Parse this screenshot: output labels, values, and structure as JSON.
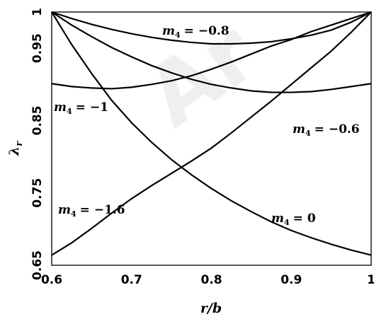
{
  "chart_data": {
    "type": "line",
    "title": "",
    "xlabel": "r/b",
    "ylabel": "λ_r",
    "xlim": [
      0.6,
      1.0
    ],
    "ylim": [
      0.65,
      1.0
    ],
    "x_ticks": [
      "0.6",
      "0.7",
      "0.8",
      "0.9",
      "1"
    ],
    "y_ticks": [
      "0.65",
      "0.75",
      "0.85",
      "0.95",
      "1"
    ],
    "grid": false,
    "watermark_text": "Ar",
    "x": [
      0.6,
      0.625,
      0.65,
      0.675,
      0.7,
      0.725,
      0.75,
      0.775,
      0.8,
      0.825,
      0.85,
      0.875,
      0.9,
      0.925,
      0.95,
      0.975,
      1.0
    ],
    "series": [
      {
        "label": "m4 = 0",
        "values": [
          1.0,
          0.955,
          0.915,
          0.878,
          0.847,
          0.82,
          0.796,
          0.775,
          0.756,
          0.739,
          0.724,
          0.71,
          0.698,
          0.688,
          0.679,
          0.671,
          0.664
        ]
      },
      {
        "label": "m4 = −0.6",
        "values": [
          1.0,
          0.982,
          0.966,
          0.951,
          0.938,
          0.926,
          0.916,
          0.907,
          0.9,
          0.895,
          0.891,
          0.889,
          0.889,
          0.89,
          0.893,
          0.897,
          0.901
        ]
      },
      {
        "label": "m4 = −0.8",
        "values": [
          1.0,
          0.991,
          0.983,
          0.976,
          0.97,
          0.965,
          0.961,
          0.958,
          0.956,
          0.956,
          0.957,
          0.959,
          0.963,
          0.968,
          0.975,
          0.986,
          1.0
        ]
      },
      {
        "label": "m4 = −1",
        "values": [
          0.901,
          0.897,
          0.895,
          0.894,
          0.896,
          0.9,
          0.905,
          0.912,
          0.921,
          0.931,
          0.942,
          0.953,
          0.962,
          0.973,
          0.982,
          0.991,
          1.0
        ]
      },
      {
        "label": "m4 = −1.6",
        "values": [
          0.664,
          0.681,
          0.701,
          0.722,
          0.742,
          0.76,
          0.777,
          0.794,
          0.812,
          0.833,
          0.855,
          0.877,
          0.9,
          0.923,
          0.946,
          0.972,
          1.0
        ]
      }
    ],
    "annotations": [
      {
        "prefix": "m",
        "sub": "4",
        "value": "= −0.8"
      },
      {
        "prefix": "m",
        "sub": "4",
        "value": "= −1"
      },
      {
        "prefix": "m",
        "sub": "4",
        "value": "= −0.6"
      },
      {
        "prefix": "m",
        "sub": "4",
        "value": "= −1.6"
      },
      {
        "prefix": "m",
        "sub": "4",
        "value": "= 0"
      }
    ],
    "ylabel_main": "λ",
    "ylabel_sub": "r"
  }
}
